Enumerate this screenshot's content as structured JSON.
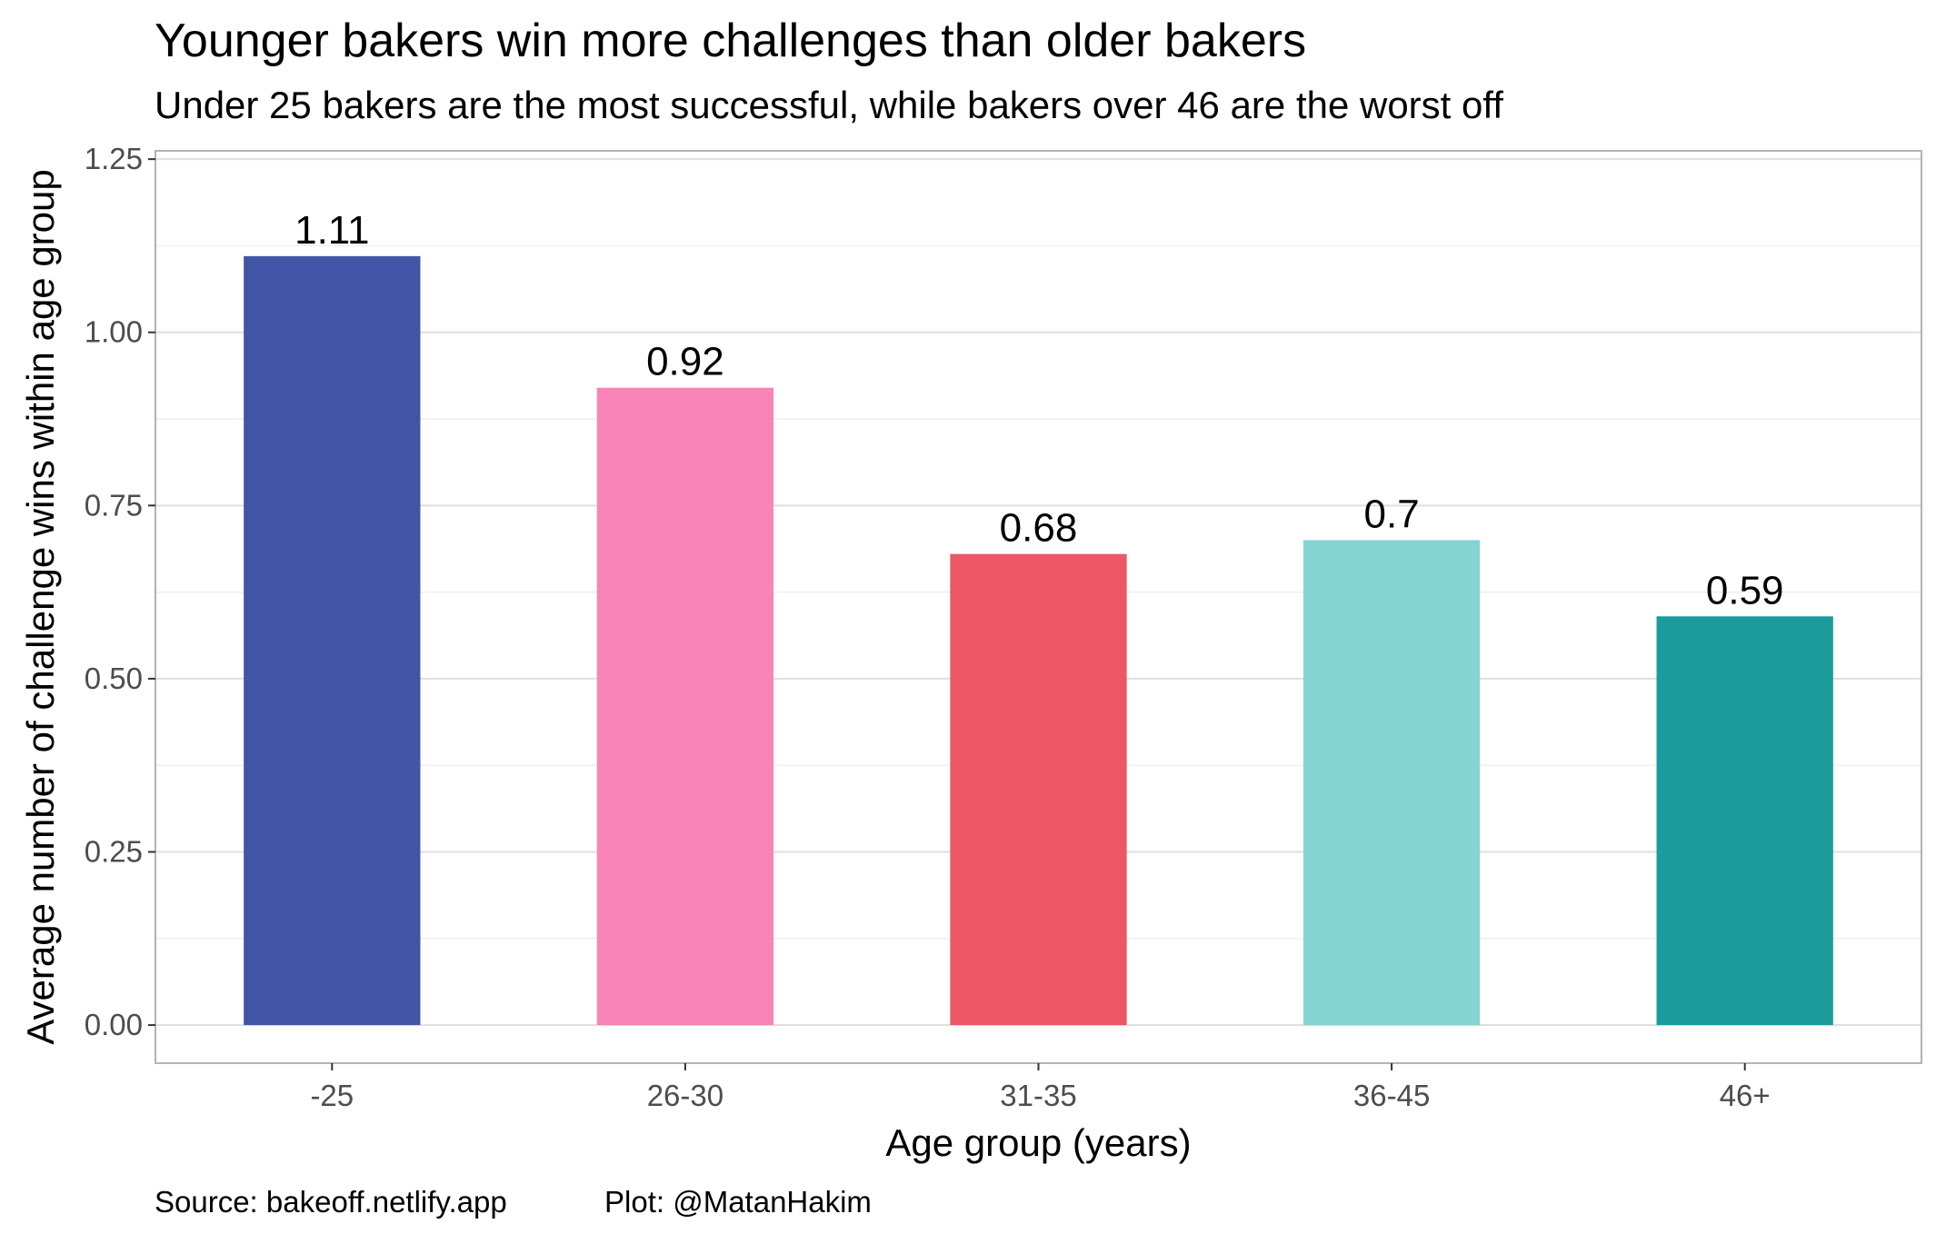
{
  "chart_data": {
    "type": "bar",
    "title": "Younger bakers win more challenges than older bakers",
    "subtitle": "Under 25 bakers are the most successful, while bakers over 46 are the worst off",
    "xlabel": "Age group (years)",
    "ylabel": "Average number of challenge wins within age group",
    "categories": [
      "-25",
      "26-30",
      "31-35",
      "36-45",
      "46+"
    ],
    "values": [
      1.11,
      0.92,
      0.68,
      0.7,
      0.59
    ],
    "data_labels": [
      "1.11",
      "0.92",
      "0.68",
      "0.7",
      "0.59"
    ],
    "bar_colors": [
      "#4254a5",
      "#f984b8",
      "#ec5865",
      "#85d4d2",
      "#1c9b9c"
    ],
    "ylim": [
      -0.055,
      1.262
    ],
    "yticks": [
      0,
      0.25,
      0.5,
      0.75,
      1,
      1.25
    ],
    "ytick_labels": [
      "0.00",
      "0.25",
      "0.50",
      "0.75",
      "1.00",
      "1.25"
    ],
    "grid": true,
    "legend": "none",
    "caption_source": "Source: bakeoff.netlify.app",
    "caption_plot": "Plot: @MatanHakim"
  }
}
